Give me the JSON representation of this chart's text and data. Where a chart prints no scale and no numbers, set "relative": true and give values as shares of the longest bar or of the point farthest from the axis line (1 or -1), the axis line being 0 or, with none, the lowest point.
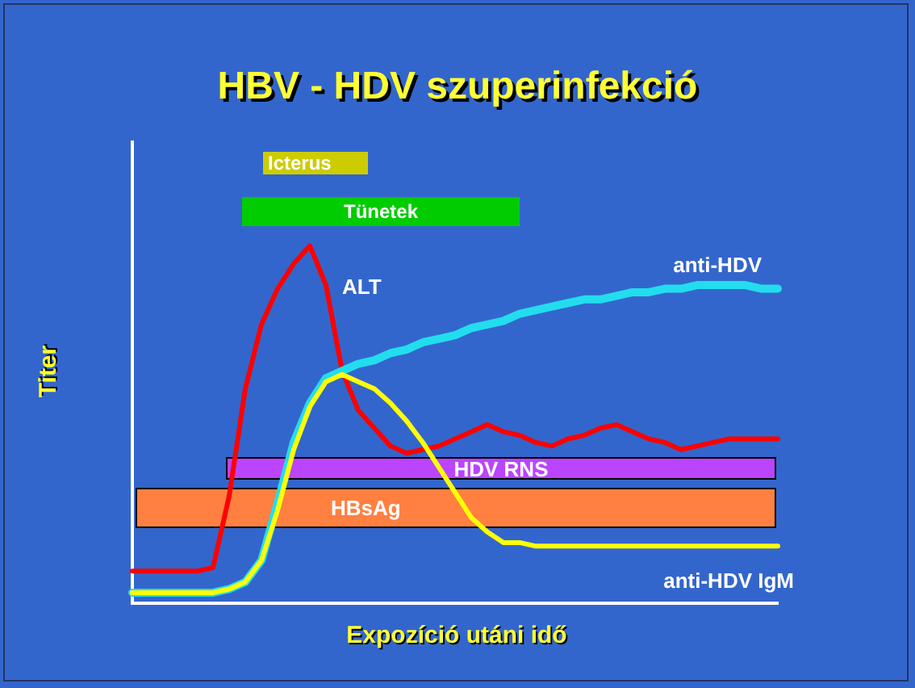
{
  "chart_data": {
    "type": "line",
    "title": "HBV - HDV szuperinfekció",
    "xlabel": "Expozíció utáni idő",
    "ylabel": "Titer",
    "relative": true,
    "grid": false,
    "legend": false,
    "marker": "none",
    "line_style": "solid",
    "categories": [
      null,
      null,
      null,
      null,
      null,
      null,
      null,
      null,
      null,
      null,
      null,
      null,
      null,
      null,
      null,
      null,
      null,
      null,
      null,
      null,
      null,
      null,
      null,
      null,
      null,
      null,
      null,
      null,
      null,
      null,
      null,
      null,
      null,
      null,
      null,
      null,
      null,
      null,
      null,
      null,
      null
    ],
    "series": [
      {
        "name": "ALT",
        "color": "#ff0000",
        "values": [
          0.09,
          0.09,
          0.09,
          0.09,
          0.09,
          0.1,
          0.3,
          0.6,
          0.78,
          0.88,
          0.95,
          1,
          0.89,
          0.65,
          0.54,
          0.49,
          0.44,
          0.42,
          0.43,
          0.44,
          0.46,
          0.48,
          0.5,
          0.48,
          0.47,
          0.45,
          0.44,
          0.46,
          0.47,
          0.49,
          0.5,
          0.48,
          0.46,
          0.45,
          0.43,
          0.44,
          0.45,
          0.46,
          0.46,
          0.46,
          0.46
        ]
      },
      {
        "name": "anti-HDV",
        "color": "#22ddee",
        "values": [
          0.03,
          0.03,
          0.03,
          0.03,
          0.03,
          0.03,
          0.04,
          0.06,
          0.12,
          0.28,
          0.45,
          0.56,
          0.63,
          0.65,
          0.67,
          0.68,
          0.7,
          0.71,
          0.73,
          0.74,
          0.75,
          0.77,
          0.78,
          0.79,
          0.81,
          0.82,
          0.83,
          0.84,
          0.85,
          0.85,
          0.86,
          0.87,
          0.87,
          0.88,
          0.88,
          0.89,
          0.89,
          0.89,
          0.89,
          0.88,
          0.88
        ]
      },
      {
        "name": "anti-HDV IgM",
        "color": "#ffff00",
        "values": [
          0.03,
          0.03,
          0.03,
          0.03,
          0.03,
          0.03,
          0.04,
          0.06,
          0.12,
          0.26,
          0.43,
          0.55,
          0.62,
          0.64,
          0.62,
          0.6,
          0.56,
          0.51,
          0.45,
          0.38,
          0.31,
          0.24,
          0.2,
          0.17,
          0.17,
          0.16,
          0.16,
          0.16,
          0.16,
          0.16,
          0.16,
          0.16,
          0.16,
          0.16,
          0.16,
          0.16,
          0.16,
          0.16,
          0.16,
          0.16,
          0.16
        ]
      }
    ],
    "annotations": [
      "Icterus",
      "Tünetek",
      "HDV RNS",
      "HBsAg"
    ]
  }
}
